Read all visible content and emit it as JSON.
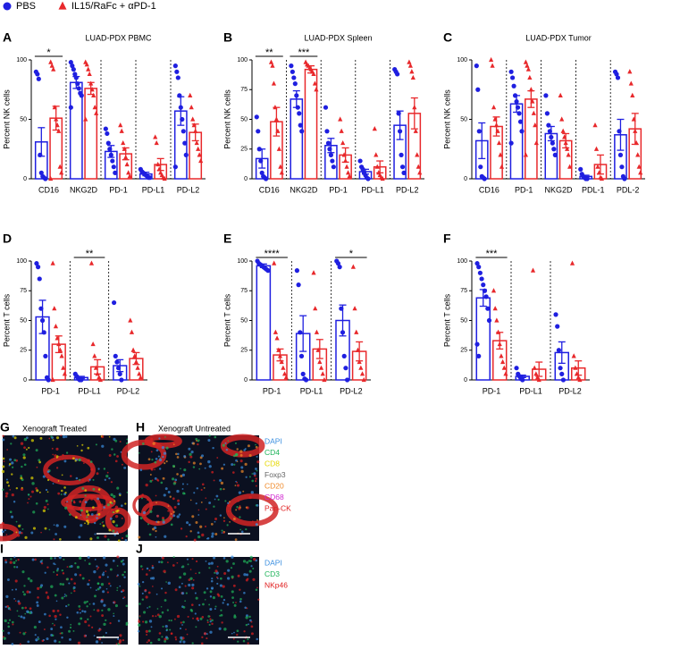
{
  "legend": [
    {
      "name": "PBS",
      "color": "#1f1fe0",
      "marker": "circle"
    },
    {
      "name": "IL15/RaFc + αPD-1",
      "color": "#e8282b",
      "marker": "triangle"
    }
  ],
  "chart_data": [
    {
      "type": "bar",
      "panel": "A",
      "title": "LUAD-PDX PBMC",
      "y_label": "Percent NK cells",
      "categories": [
        "CD16",
        "NKG2D",
        "PD-1",
        "PD-L1",
        "PD-L2"
      ],
      "ylim": [
        0,
        100
      ],
      "yticks": [
        0,
        50,
        100
      ],
      "series": [
        {
          "color": "#1f1fe0",
          "marker": "circle",
          "values": [
            31,
            81,
            23,
            4,
            57
          ],
          "errors": [
            12,
            5,
            5,
            1.5,
            12
          ],
          "points": [
            [
              90,
              88,
              84,
              20,
              5,
              2,
              1,
              0
            ],
            [
              98,
              95,
              92,
              88,
              85,
              80,
              76,
              72,
              70,
              60
            ],
            [
              42,
              38,
              30,
              25,
              20,
              15,
              10,
              5
            ],
            [
              8,
              6,
              5,
              4,
              3,
              2,
              1,
              1
            ],
            [
              95,
              90,
              85,
              70,
              60,
              50,
              40,
              30,
              20,
              10
            ]
          ]
        },
        {
          "color": "#e8282b",
          "marker": "triangle",
          "values": [
            51,
            76,
            21,
            12,
            39
          ],
          "errors": [
            10,
            5,
            5,
            5,
            7
          ],
          "points": [
            [
              98,
              95,
              92,
              60,
              50,
              45,
              40,
              10,
              5,
              0
            ],
            [
              98,
              96,
              92,
              88,
              80,
              75,
              70,
              60,
              55,
              50
            ],
            [
              45,
              40,
              30,
              25,
              18,
              12,
              5,
              2
            ],
            [
              35,
              30,
              12,
              8,
              5,
              3,
              1,
              0
            ],
            [
              70,
              60,
              50,
              45,
              40,
              30,
              25,
              20,
              15
            ]
          ]
        }
      ],
      "annotations": [
        {
          "text": "*",
          "category": "CD16"
        }
      ]
    },
    {
      "type": "bar",
      "panel": "B",
      "title": "LUAD-PDX Spleen",
      "y_label": "Percent NK cells",
      "categories": [
        "CD16",
        "NKG2D",
        "PD-1",
        "PD-L1",
        "PD-L2"
      ],
      "ylim": [
        0,
        100
      ],
      "yticks": [
        0,
        25,
        50,
        75,
        100
      ],
      "series": [
        {
          "color": "#1f1fe0",
          "marker": "circle",
          "values": [
            17,
            67,
            28,
            6,
            45
          ],
          "errors": [
            8,
            7,
            6,
            2,
            12
          ],
          "points": [
            [
              52,
              40,
              25,
              15,
              5,
              2,
              1,
              0
            ],
            [
              95,
              90,
              85,
              80,
              70,
              60,
              55,
              45,
              40
            ],
            [
              60,
              40,
              30,
              25,
              20,
              15,
              10
            ],
            [
              15,
              10,
              8,
              5,
              3,
              1,
              0
            ],
            [
              92,
              90,
              88,
              55,
              40,
              20,
              10,
              5
            ]
          ]
        },
        {
          "color": "#e8282b",
          "marker": "triangle",
          "values": [
            48,
            92,
            20,
            10,
            55
          ],
          "errors": [
            12,
            3,
            6,
            5,
            13
          ],
          "points": [
            [
              98,
              95,
              80,
              60,
              50,
              40,
              25,
              10,
              5
            ],
            [
              98,
              96,
              95,
              93,
              92,
              90,
              88,
              80,
              75
            ],
            [
              50,
              40,
              30,
              20,
              15,
              10,
              5,
              2
            ],
            [
              42,
              20,
              10,
              5,
              3,
              1,
              0
            ],
            [
              98,
              95,
              90,
              85,
              60,
              40,
              20,
              10,
              5
            ]
          ]
        }
      ],
      "annotations": [
        {
          "text": "**",
          "category": "CD16"
        },
        {
          "text": "***",
          "category": "NKG2D"
        }
      ]
    },
    {
      "type": "bar",
      "panel": "C",
      "title": "LUAD-PDX Tumor",
      "y_label": "Percent NK cells",
      "categories": [
        "CD16",
        "PD-1",
        "NKG2D",
        "PDL-1",
        "PDL-2"
      ],
      "ylim": [
        0,
        100
      ],
      "yticks": [
        0,
        50,
        100
      ],
      "series": [
        {
          "color": "#1f1fe0",
          "marker": "circle",
          "values": [
            32,
            63,
            38,
            2,
            37
          ],
          "errors": [
            15,
            7,
            6,
            1,
            13
          ],
          "points": [
            [
              95,
              75,
              40,
              10,
              2,
              1,
              0
            ],
            [
              90,
              85,
              78,
              70,
              65,
              60,
              55,
              48,
              40,
              30
            ],
            [
              70,
              55,
              45,
              40,
              35,
              30,
              25,
              20
            ],
            [
              8,
              4,
              2,
              1,
              0,
              0
            ],
            [
              90,
              88,
              85,
              40,
              20,
              10,
              2,
              0
            ]
          ]
        },
        {
          "color": "#e8282b",
          "marker": "triangle",
          "values": [
            44,
            67,
            32,
            12,
            42
          ],
          "errors": [
            8,
            7,
            6,
            8,
            13
          ],
          "points": [
            [
              100,
              95,
              60,
              50,
              45,
              40,
              30,
              20,
              10
            ],
            [
              98,
              95,
              92,
              85,
              75,
              65,
              55,
              45,
              30,
              20
            ],
            [
              70,
              50,
              40,
              35,
              30,
              25,
              20,
              10
            ],
            [
              45,
              25,
              10,
              5,
              1,
              0
            ],
            [
              90,
              80,
              70,
              50,
              40,
              30,
              20,
              10,
              5
            ]
          ]
        }
      ],
      "annotations": []
    },
    {
      "type": "bar",
      "panel": "D",
      "y_label": "Percent T cells",
      "categories": [
        "PD-1",
        "PD-L1",
        "PD-L2"
      ],
      "ylim": [
        0,
        100
      ],
      "yticks": [
        0,
        25,
        50,
        75,
        100
      ],
      "series": [
        {
          "color": "#1f1fe0",
          "marker": "circle",
          "values": [
            53,
            2,
            12
          ],
          "errors": [
            14,
            1,
            5
          ],
          "points": [
            [
              98,
              95,
              85,
              60,
              50,
              40,
              20,
              2,
              0
            ],
            [
              5,
              3,
              1,
              0,
              0
            ],
            [
              65,
              20,
              15,
              10,
              5,
              0
            ]
          ]
        },
        {
          "color": "#e8282b",
          "marker": "triangle",
          "values": [
            30,
            11,
            18
          ],
          "errors": [
            7,
            6,
            5
          ],
          "points": [
            [
              98,
              60,
              45,
              35,
              30,
              25,
              20,
              10,
              5,
              0
            ],
            [
              98,
              30,
              20,
              10,
              5,
              2,
              0
            ],
            [
              50,
              40,
              25,
              20,
              15,
              10,
              5,
              2
            ]
          ]
        }
      ],
      "annotations": [
        {
          "text": "**",
          "category": "PD-L1"
        }
      ]
    },
    {
      "type": "bar",
      "panel": "E",
      "y_label": "Percent T cells",
      "categories": [
        "PD-1",
        "PD-L1",
        "PD-L2"
      ],
      "ylim": [
        0,
        100
      ],
      "yticks": [
        0,
        25,
        50,
        75,
        100
      ],
      "series": [
        {
          "color": "#1f1fe0",
          "marker": "circle",
          "values": [
            96,
            39,
            50
          ],
          "errors": [
            1.5,
            15,
            13
          ],
          "points": [
            [
              100,
              98,
              97,
              96,
              95,
              94,
              93,
              92
            ],
            [
              92,
              80,
              40,
              20,
              5,
              1,
              0
            ],
            [
              100,
              98,
              95,
              60,
              40,
              20,
              10,
              0
            ]
          ]
        },
        {
          "color": "#e8282b",
          "marker": "triangle",
          "values": [
            21,
            26,
            24
          ],
          "errors": [
            5,
            8,
            8
          ],
          "points": [
            [
              98,
              40,
              35,
              25,
              20,
              15,
              10,
              5,
              2
            ],
            [
              90,
              60,
              40,
              25,
              15,
              10,
              5,
              0
            ],
            [
              95,
              60,
              40,
              25,
              15,
              10,
              5,
              0
            ]
          ]
        }
      ],
      "annotations": [
        {
          "text": "****",
          "category": "PD-1"
        },
        {
          "text": "*",
          "category": "PD-L2"
        }
      ]
    },
    {
      "type": "bar",
      "panel": "F",
      "y_label": "Percent T cells",
      "categories": [
        "PD-1",
        "PD-L1",
        "PD-L2"
      ],
      "ylim": [
        0,
        100
      ],
      "yticks": [
        0,
        25,
        50,
        75,
        100
      ],
      "series": [
        {
          "color": "#1f1fe0",
          "marker": "circle",
          "values": [
            69,
            3,
            23
          ],
          "errors": [
            7,
            1,
            9
          ],
          "points": [
            [
              98,
              95,
              90,
              85,
              80,
              75,
              70,
              60,
              50,
              30,
              20
            ],
            [
              10,
              5,
              3,
              1,
              0
            ],
            [
              55,
              45,
              25,
              10,
              5,
              0
            ]
          ]
        },
        {
          "color": "#e8282b",
          "marker": "triangle",
          "values": [
            33,
            9,
            10
          ],
          "errors": [
            7,
            6,
            6
          ],
          "points": [
            [
              75,
              60,
              50,
              40,
              30,
              20,
              15,
              10,
              5
            ],
            [
              92,
              10,
              5,
              2,
              0
            ],
            [
              98,
              20,
              10,
              5,
              2,
              0
            ]
          ]
        }
      ],
      "annotations": [
        {
          "text": "***",
          "category": "PD-1"
        }
      ]
    }
  ],
  "images": {
    "panels": [
      {
        "letter": "G",
        "title": "Xenograft Treated"
      },
      {
        "letter": "H",
        "title": "Xenograft Untreated"
      },
      {
        "letter": "I"
      },
      {
        "letter": "J"
      }
    ],
    "legends": [
      [
        {
          "text": "DAPI",
          "color": "#3b8fe0"
        },
        {
          "text": "CD4",
          "color": "#1fb45a"
        },
        {
          "text": "CD8",
          "color": "#e6d800"
        },
        {
          "text": "Foxp3",
          "color": "#666666"
        },
        {
          "text": "CD20",
          "color": "#f08a2a"
        },
        {
          "text": "CD68",
          "color": "#d12bd1"
        },
        {
          "text": "Pan-CK",
          "color": "#e02020"
        }
      ],
      [
        {
          "text": "DAPI",
          "color": "#3b8fe0"
        },
        {
          "text": "CD3",
          "color": "#1fb45a"
        },
        {
          "text": "NKp46",
          "color": "#e02020"
        }
      ]
    ]
  }
}
